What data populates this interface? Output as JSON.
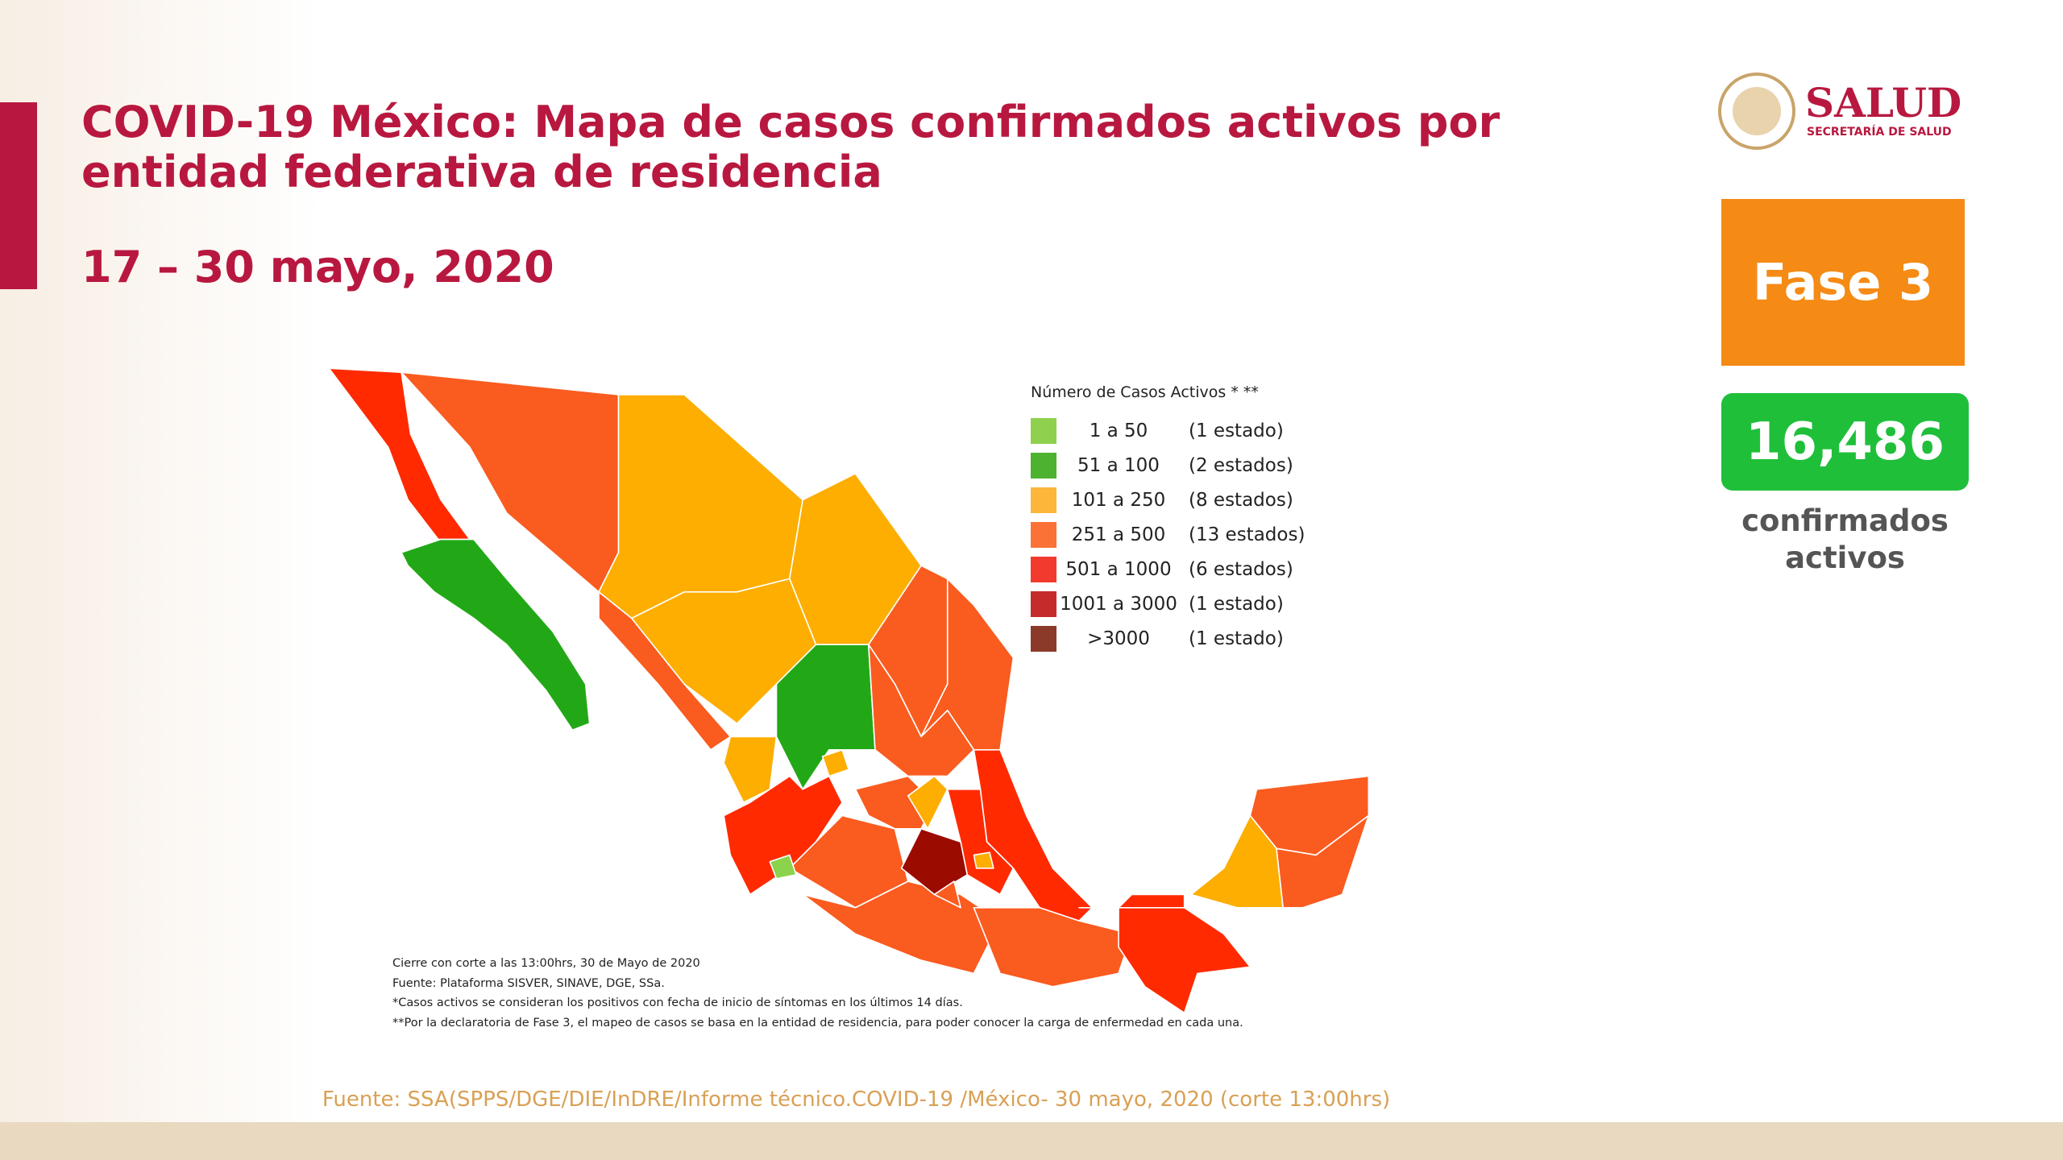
{
  "header": {
    "title_line1": "COVID-19 México: Mapa de casos confirmados activos por",
    "title_line2": "entidad federativa de residencia",
    "date_range": "17 – 30 mayo, 2020"
  },
  "logo": {
    "name": "SALUD",
    "subtitle": "SECRETARÍA DE SALUD"
  },
  "phase": "Fase 3",
  "total": {
    "count": "16,486",
    "label_line1": "confirmados",
    "label_line2": "activos"
  },
  "legend": {
    "title": "Número de Casos Activos * **",
    "items": [
      {
        "range": "1 a 50",
        "count": "(1 estado)",
        "color": "#8fd14f"
      },
      {
        "range": "51 a 100",
        "count": "(2 estados)",
        "color": "#4cb230"
      },
      {
        "range": "101 a 250",
        "count": "(8 estados)",
        "color": "#fdb53a"
      },
      {
        "range": "251 a 500",
        "count": "(13 estados)",
        "color": "#fb7236"
      },
      {
        "range": "501 a 1000",
        "count": "(6 estados)",
        "color": "#f33a2f"
      },
      {
        "range": "1001 a 3000",
        "count": "(1 estado)",
        "color": "#c62b2b"
      },
      {
        "range": ">3000",
        "count": "(1 estado)",
        "color": "#8b3a2a"
      }
    ]
  },
  "notes": [
    "Cierre con corte a las 13:00hrs, 30 de Mayo de 2020",
    "Fuente: Plataforma SISVER, SINAVE, DGE, SSa.",
    "*Casos activos se consideran los positivos con fecha de inicio de síntomas en los últimos 14 días.",
    "**Por la declaratoria de Fase 3, el mapeo de casos se basa en la entidad de residencia, para poder conocer la carga de enfermedad en cada una."
  ],
  "source": "Fuente: SSA(SPPS/DGE/DIE/InDRE/Informe técnico.COVID-19 /México- 30 mayo, 2020 (corte 13:00hrs)"
}
